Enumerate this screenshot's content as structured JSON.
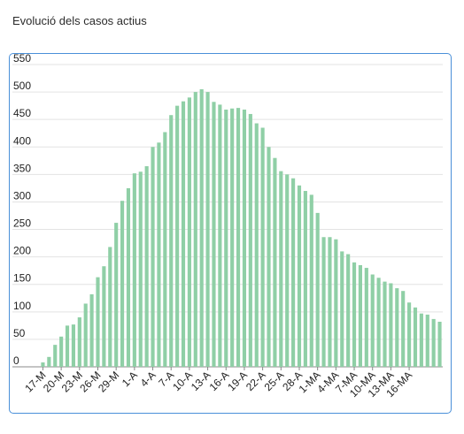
{
  "title": "Evolució dels casos actius",
  "chart_data": {
    "type": "bar",
    "ylim": [
      0,
      550
    ],
    "yticks": [
      0,
      50,
      100,
      150,
      200,
      250,
      300,
      350,
      400,
      450,
      500,
      550
    ],
    "xtick_labels": [
      "17-M",
      "20-M",
      "23-M",
      "26-M",
      "29-M",
      "1-A",
      "4-A",
      "7-A",
      "10-A",
      "13-A",
      "16-A",
      "19-A",
      "22-A",
      "25-A",
      "28-A",
      "1-MA",
      "4-MA",
      "7-MA",
      "10-MA",
      "13-MA",
      "16-MA"
    ],
    "grid": true,
    "bar_color": "#8fcfa6",
    "values": [
      8,
      18,
      40,
      55,
      75,
      77,
      90,
      115,
      132,
      163,
      183,
      218,
      262,
      302,
      325,
      352,
      355,
      365,
      400,
      408,
      427,
      458,
      475,
      483,
      490,
      500,
      505,
      500,
      482,
      477,
      468,
      470,
      471,
      468,
      460,
      443,
      435,
      400,
      380,
      356,
      350,
      343,
      330,
      320,
      313,
      280,
      236,
      236,
      232,
      210,
      205,
      190,
      185,
      180,
      168,
      162,
      155,
      152,
      143,
      138,
      117,
      108,
      97,
      95,
      87,
      82
    ]
  }
}
